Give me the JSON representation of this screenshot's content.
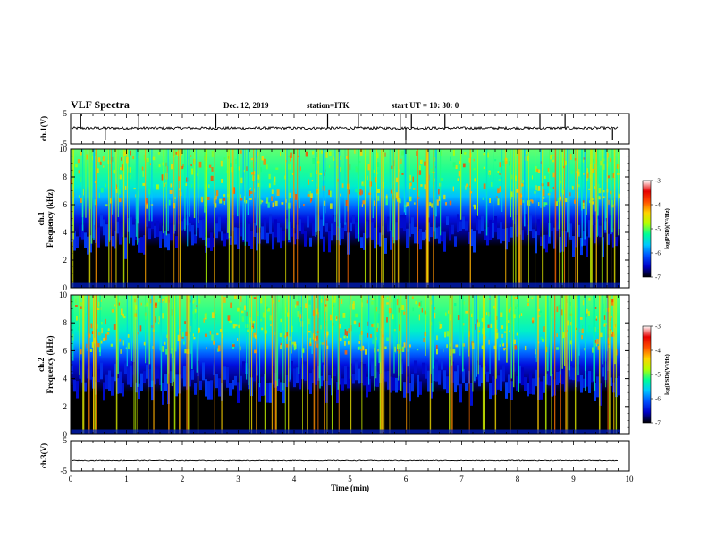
{
  "header": {
    "title": "VLF Spectra",
    "date": "Dec. 12, 2019",
    "station": "station=ITK",
    "start": "start  UT =   10: 30: 0"
  },
  "chart_data": {
    "type": "spectrogram",
    "xlabel": "Time (min)",
    "xlim": [
      0,
      10
    ],
    "x_ticks": [
      "0",
      "1",
      "2",
      "3",
      "4",
      "5",
      "6",
      "7",
      "8",
      "9",
      "10"
    ],
    "data_end_min": 9.83,
    "panels": [
      {
        "id": "ch1_waveform",
        "type": "line",
        "ylabel": "ch.1(V)",
        "ylim": [
          -5,
          5
        ],
        "y_ticks": [
          "5",
          "-5"
        ],
        "baseline": 0.2,
        "spikes_min": [
          0.18,
          0.62,
          1.22,
          2.6,
          4.6,
          5.15,
          5.9,
          6.0,
          6.1,
          6.7,
          8.4,
          8.85,
          9.7
        ]
      },
      {
        "id": "ch1_spectrum",
        "type": "heatmap",
        "ylabel_line1": "ch.1",
        "ylabel_line2": "Frequency (kHz)",
        "ylim": [
          0,
          10
        ],
        "y_ticks": [
          "0",
          "2",
          "4",
          "6",
          "8",
          "10"
        ],
        "colorbar": {
          "label": "log(PSD)(V²/Hz)",
          "range": [
            -7,
            -3
          ],
          "ticks": [
            "-3",
            "-4",
            "-5",
            "-6",
            "-7"
          ]
        },
        "bands": [
          {
            "khz": [
              0,
              4
            ],
            "level": "black (< -7)"
          },
          {
            "khz": [
              4,
              6
            ],
            "level": "blue (-6.5)"
          },
          {
            "khz": [
              6,
              10
            ],
            "level": "green-cyan (-5 to -4)"
          }
        ]
      },
      {
        "id": "ch2_spectrum",
        "type": "heatmap",
        "ylabel_line1": "ch.2",
        "ylabel_line2": "Frequency (kHz)",
        "ylim": [
          0,
          10
        ],
        "y_ticks": [
          "0",
          "2",
          "4",
          "6",
          "8",
          "10"
        ],
        "colorbar": {
          "label": "log(PSD)(V²/Hz)",
          "range": [
            -7,
            -3
          ],
          "ticks": [
            "-3",
            "-4",
            "-5",
            "-6",
            "-7"
          ]
        },
        "bands": [
          {
            "khz": [
              0,
              4
            ],
            "level": "black (< -7)"
          },
          {
            "khz": [
              4,
              6
            ],
            "level": "blue (-6.5)"
          },
          {
            "khz": [
              6,
              10
            ],
            "level": "green-cyan (-5 to -4)"
          }
        ]
      },
      {
        "id": "ch3_waveform",
        "type": "line",
        "ylabel": "ch.3(V)",
        "ylim": [
          -5,
          5
        ],
        "y_ticks": [
          "5",
          "-5"
        ],
        "baseline": -1.6,
        "spikes_min": []
      }
    ],
    "colormap": [
      "#000000",
      "#0000c8",
      "#0050ff",
      "#00c8ff",
      "#00ff96",
      "#b4ff00",
      "#ffd200",
      "#ff5000",
      "#e60000",
      "#ffffff"
    ]
  }
}
